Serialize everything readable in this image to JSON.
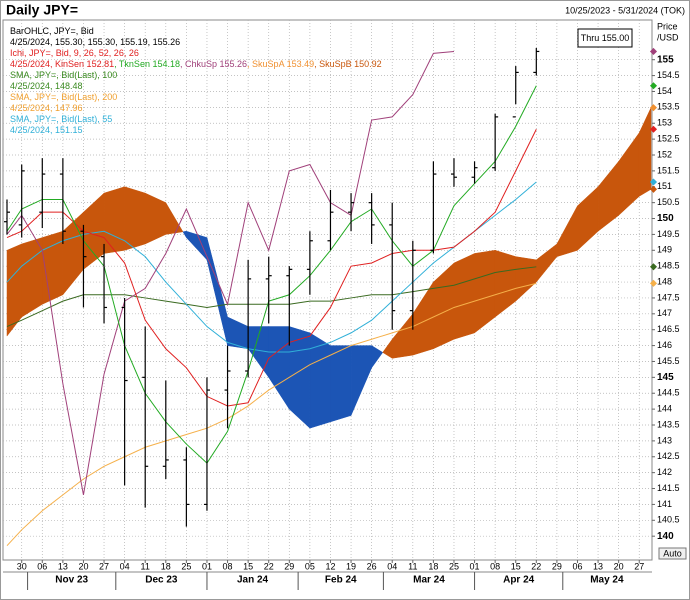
{
  "header": {
    "title": "Daily JPY=",
    "range": "10/25/2023 - 5/31/2024 (TOK)"
  },
  "chart_data": {
    "type": "ohlc",
    "x": [
      "2023-10-25",
      "2023-10-30",
      "2023-11-06",
      "2023-11-13",
      "2023-11-20",
      "2023-11-27",
      "2023-12-04",
      "2023-12-11",
      "2023-12-18",
      "2023-12-25",
      "2024-01-01",
      "2024-01-08",
      "2024-01-15",
      "2024-01-22",
      "2024-01-29",
      "2024-02-05",
      "2024-02-12",
      "2024-02-19",
      "2024-02-26",
      "2024-03-04",
      "2024-03-11",
      "2024-03-18",
      "2024-03-25",
      "2024-04-01",
      "2024-04-08",
      "2024-04-15",
      "2024-04-22",
      "2024-04-29",
      "2024-05-06",
      "2024-05-13",
      "2024-05-20",
      "2024-05-27",
      "2024-05-31"
    ],
    "xlim": [
      "2023-10-25",
      "2024-05-31"
    ],
    "xticks": [
      {
        "value": "2023-10-30",
        "label": "30"
      },
      {
        "value": "2023-11-06",
        "label": "06"
      },
      {
        "value": "2023-11-13",
        "label": "13"
      },
      {
        "value": "2023-11-20",
        "label": "20"
      },
      {
        "value": "2023-11-27",
        "label": "27"
      },
      {
        "value": "2023-12-04",
        "label": "04"
      },
      {
        "value": "2023-12-11",
        "label": "11"
      },
      {
        "value": "2023-12-18",
        "label": "18"
      },
      {
        "value": "2023-12-25",
        "label": "25"
      },
      {
        "value": "2024-01-01",
        "label": "01"
      },
      {
        "value": "2024-01-08",
        "label": "08"
      },
      {
        "value": "2024-01-15",
        "label": "15"
      },
      {
        "value": "2024-01-22",
        "label": "22"
      },
      {
        "value": "2024-01-29",
        "label": "29"
      },
      {
        "value": "2024-02-05",
        "label": "05"
      },
      {
        "value": "2024-02-12",
        "label": "12"
      },
      {
        "value": "2024-02-19",
        "label": "19"
      },
      {
        "value": "2024-02-26",
        "label": "26"
      },
      {
        "value": "2024-03-04",
        "label": "04"
      },
      {
        "value": "2024-03-11",
        "label": "11"
      },
      {
        "value": "2024-03-18",
        "label": "18"
      },
      {
        "value": "2024-03-25",
        "label": "25"
      },
      {
        "value": "2024-04-01",
        "label": "01"
      },
      {
        "value": "2024-04-08",
        "label": "08"
      },
      {
        "value": "2024-04-15",
        "label": "15"
      },
      {
        "value": "2024-04-22",
        "label": "22"
      },
      {
        "value": "2024-04-29",
        "label": "29"
      },
      {
        "value": "2024-05-06",
        "label": "06"
      },
      {
        "value": "2024-05-13",
        "label": "13"
      },
      {
        "value": "2024-05-20",
        "label": "20"
      },
      {
        "value": "2024-05-27",
        "label": "27"
      }
    ],
    "months": [
      {
        "value": "2023-11",
        "label": "Nov 23"
      },
      {
        "value": "2023-12",
        "label": "Dec 23"
      },
      {
        "value": "2024-01",
        "label": "Jan 24"
      },
      {
        "value": "2024-02",
        "label": "Feb 24"
      },
      {
        "value": "2024-03",
        "label": "Mar 24"
      },
      {
        "value": "2024-04",
        "label": "Apr 24"
      },
      {
        "value": "2024-05",
        "label": "May 24"
      }
    ],
    "ylim": [
      139.25,
      156.25
    ],
    "yticks": [
      140,
      140.5,
      141,
      141.5,
      142,
      142.5,
      143,
      143.5,
      144,
      144.5,
      145,
      145.5,
      146,
      146.5,
      147,
      147.5,
      148,
      148.5,
      149,
      149.5,
      150,
      150.5,
      151,
      151.5,
      152,
      152.5,
      153,
      153.5,
      154,
      154.5,
      155
    ],
    "y_axis_title": "Price",
    "y_axis_unit": "/USD",
    "grid": true,
    "ohlc": {
      "color": "#000000",
      "open": [
        149.9,
        149.8,
        150.2,
        151.4,
        149.6,
        148.8,
        147.2,
        145.0,
        142.2,
        142.4,
        141.0,
        144.6,
        145.2,
        148.1,
        148.2,
        148.4,
        149.3,
        150.2,
        150.5,
        149.8,
        147.1,
        149.0,
        151.4,
        151.3,
        151.6,
        153.2,
        154.6,
        null,
        null,
        null,
        null,
        null,
        null
      ],
      "high": [
        150.6,
        151.7,
        151.9,
        151.9,
        149.8,
        149.2,
        147.5,
        146.6,
        144.9,
        142.8,
        145.0,
        146.0,
        148.7,
        148.8,
        148.5,
        149.6,
        150.9,
        150.8,
        150.8,
        150.5,
        149.3,
        151.8,
        151.9,
        151.8,
        153.3,
        154.8,
        155.37,
        null,
        null,
        null,
        null,
        null,
        null
      ],
      "low": [
        149.5,
        149.4,
        149.7,
        149.2,
        147.2,
        146.7,
        141.6,
        140.9,
        141.8,
        140.3,
        140.8,
        143.4,
        145.0,
        146.7,
        146.0,
        147.6,
        149.0,
        149.6,
        149.2,
        146.5,
        146.5,
        148.9,
        151.0,
        151.1,
        151.5,
        153.6,
        154.5,
        null,
        null,
        null,
        null,
        null,
        null
      ],
      "close": [
        150.2,
        151.5,
        151.4,
        149.6,
        148.8,
        147.2,
        144.9,
        142.2,
        142.4,
        141.0,
        144.6,
        145.2,
        148.1,
        148.2,
        148.4,
        149.3,
        150.2,
        150.5,
        149.8,
        147.1,
        149.0,
        151.4,
        151.3,
        151.6,
        153.2,
        154.6,
        155.26,
        null,
        null,
        null,
        null,
        null,
        null
      ]
    },
    "cloud": {
      "up_color": "#c8560c",
      "down_color": "#1c55b5",
      "span_a": [
        149.0,
        149.2,
        149.4,
        149.6,
        150.2,
        150.8,
        151.0,
        150.8,
        150.5,
        149.4,
        148.7,
        146.0,
        145.9,
        145.0,
        144.0,
        143.4,
        143.6,
        143.8,
        145.3,
        146.2,
        147.0,
        148.0,
        148.6,
        148.9,
        149.0,
        148.8,
        148.7,
        149.2,
        150.4,
        151.0,
        151.8,
        152.7,
        153.49
      ],
      "span_b": [
        146.3,
        146.9,
        147.3,
        147.6,
        148.4,
        148.9,
        149.0,
        149.2,
        149.5,
        149.6,
        149.4,
        146.9,
        146.6,
        146.6,
        146.6,
        146.4,
        146.0,
        146.0,
        146.0,
        145.6,
        145.7,
        145.9,
        146.2,
        146.4,
        146.9,
        147.4,
        148.0,
        148.8,
        149.0,
        149.6,
        150.1,
        150.7,
        150.92
      ]
    },
    "lines": [
      {
        "color": "#f5b04a",
        "values": [
          139.7,
          140.2,
          140.8,
          141.3,
          141.8,
          142.2,
          142.5,
          142.8,
          143.0,
          143.2,
          143.4,
          143.7,
          144.1,
          144.6,
          145.0,
          145.4,
          145.7,
          146.0,
          146.2,
          146.4,
          146.6,
          146.9,
          147.2,
          147.4,
          147.6,
          147.8,
          147.96,
          null,
          null,
          null,
          null,
          null,
          null
        ]
      },
      {
        "color": "#3a6a20",
        "values": [
          146.6,
          146.8,
          147.1,
          147.4,
          147.6,
          147.6,
          147.6,
          147.5,
          147.4,
          147.3,
          147.2,
          147.3,
          147.3,
          147.3,
          147.3,
          147.4,
          147.4,
          147.5,
          147.6,
          147.6,
          147.7,
          147.8,
          147.9,
          148.1,
          148.3,
          148.4,
          148.48,
          null,
          null,
          null,
          null,
          null,
          null
        ]
      },
      {
        "color": "#30b0d8",
        "values": [
          148.0,
          148.5,
          149.0,
          149.3,
          149.5,
          149.6,
          149.3,
          148.8,
          148.0,
          147.3,
          146.6,
          146.1,
          145.9,
          145.8,
          145.8,
          145.9,
          146.1,
          146.4,
          146.8,
          147.4,
          148.0,
          148.6,
          149.1,
          149.6,
          150.1,
          150.6,
          151.15,
          null,
          null,
          null,
          null,
          null,
          null
        ]
      },
      {
        "color": "#a0407a",
        "values": [
          149.5,
          150.1,
          149.0,
          144.8,
          141.3,
          145.1,
          147.4,
          147.8,
          148.9,
          150.3,
          148.8,
          147.3,
          150.5,
          149.0,
          151.5,
          151.7,
          150.5,
          150.1,
          153.1,
          153.2,
          153.9,
          155.2,
          155.26,
          null,
          null,
          null,
          null,
          null,
          null,
          null,
          null,
          null,
          null
        ]
      },
      {
        "color": "#e02020",
        "values": [
          149.4,
          149.6,
          150.2,
          150.2,
          149.6,
          149.4,
          148.6,
          146.8,
          145.9,
          145.3,
          144.4,
          144.1,
          144.2,
          145.6,
          146.1,
          146.3,
          147.2,
          148.5,
          148.6,
          148.9,
          149.0,
          149.0,
          149.1,
          149.6,
          150.2,
          151.5,
          152.81,
          null,
          null,
          null,
          null,
          null,
          null
        ]
      },
      {
        "color": "#22aa22",
        "values": [
          149.6,
          150.3,
          150.6,
          150.6,
          149.3,
          148.5,
          146.0,
          144.5,
          143.6,
          142.9,
          142.3,
          143.3,
          145.2,
          147.4,
          147.6,
          148.2,
          149.0,
          149.9,
          150.3,
          149.3,
          148.5,
          149.0,
          150.4,
          151.1,
          151.8,
          152.9,
          154.18,
          null,
          null,
          null,
          null,
          null,
          null
        ]
      }
    ],
    "legend": [
      {
        "parts": [
          {
            "text": "BarOHLC, JPY=, Bid",
            "color": "#000000"
          }
        ]
      },
      {
        "parts": [
          {
            "text": "4/25/2024, 155.30, 155.30, 155.19, 155.26",
            "color": "#000000"
          }
        ]
      },
      {
        "parts": [
          {
            "text": "Ichi, JPY=, Bid,  9, 26, 52, 26, 26",
            "color": "#e02020"
          }
        ]
      },
      {
        "parts": [
          {
            "text": "4/25/2024, KinSen 152.81",
            "color": "#e02020"
          },
          {
            "text": ", TknSen 154.18",
            "color": "#22aa22"
          },
          {
            "text": ", ChkuSp 155.26",
            "color": "#a0407a"
          },
          {
            "text": ", SkuSpA 153.49",
            "color": "#f09030"
          },
          {
            "text": ", SkuSpB 150.92",
            "color": "#c8560c"
          }
        ]
      },
      {
        "parts": [
          {
            "text": "SMA, JPY=, Bid(Last), 100",
            "color": "#3a8a20"
          }
        ]
      },
      {
        "parts": [
          {
            "text": "4/25/2024, 148.48",
            "color": "#3a8a20"
          }
        ]
      },
      {
        "parts": [
          {
            "text": "SMA, JPY=, Bid(Last), 200",
            "color": "#f0a030"
          }
        ]
      },
      {
        "parts": [
          {
            "text": "4/25/2024, 147.96",
            "color": "#f0a030"
          }
        ]
      },
      {
        "parts": [
          {
            "text": "SMA, JPY=, Bid(Last), 55",
            "color": "#30b0d8"
          }
        ]
      },
      {
        "parts": [
          {
            "text": "4/25/2024, 151.15",
            "color": "#30b0d8"
          }
        ]
      }
    ],
    "annotation": "Thru 155.00",
    "auto_button": "Auto"
  }
}
